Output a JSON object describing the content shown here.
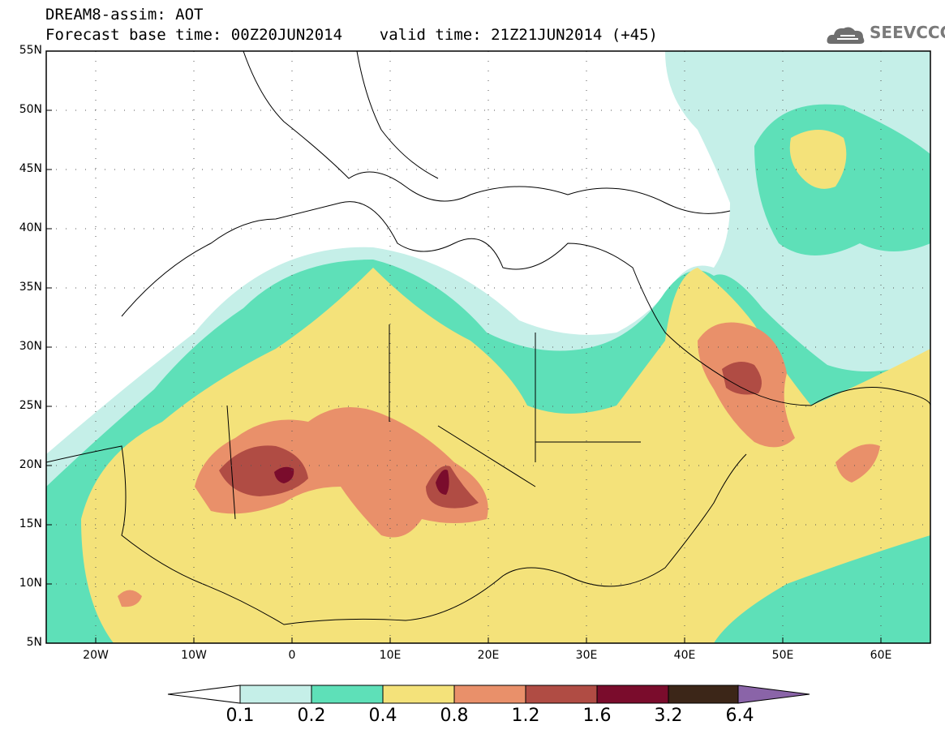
{
  "title": {
    "line1": "DREAM8-assim: AOT",
    "line2": "Forecast base time: 00Z20JUN2014    valid time: 21Z21JUN2014 (+45)"
  },
  "logo": {
    "text": "SEEVCCC",
    "icon": "cloud-icon",
    "color": "#6e6e6e"
  },
  "map": {
    "lon_range": [
      -25,
      65
    ],
    "lat_range": [
      5,
      55
    ],
    "lat_ticks": [
      "55N",
      "50N",
      "45N",
      "40N",
      "35N",
      "30N",
      "25N",
      "20N",
      "15N",
      "10N",
      "5N"
    ],
    "lon_ticks": [
      "20W",
      "10W",
      "0",
      "10E",
      "20E",
      "30E",
      "40E",
      "50E",
      "60E"
    ]
  },
  "colorbar": {
    "levels": [
      "0.1",
      "0.2",
      "0.4",
      "0.8",
      "1.2",
      "1.6",
      "3.2",
      "6.4"
    ],
    "colors": [
      "#c5efe8",
      "#5ee0b8",
      "#f4e27a",
      "#e9906a",
      "#b04c44",
      "#7a0c2c",
      "#3c2618",
      "#8a64a8"
    ]
  }
}
